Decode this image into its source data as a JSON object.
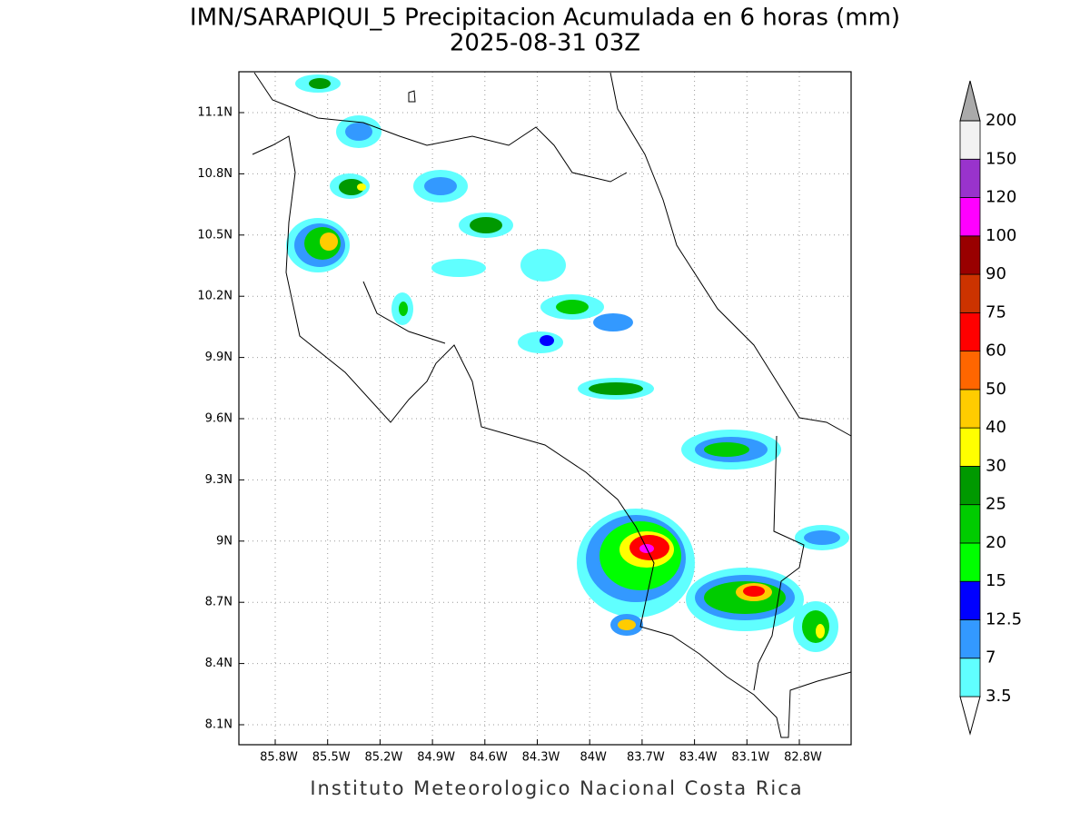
{
  "title": "IMN/SARAPIQUI_5 Precipitacion Acumulada en 6 horas (mm)",
  "subtitle": "2025-08-31 03Z",
  "map": {
    "lon_labels": [
      "85.8W",
      "85.5W",
      "85.2W",
      "84.9W",
      "84.6W",
      "84.3W",
      "84W",
      "83.7W",
      "83.4W",
      "83.1W",
      "82.8W"
    ],
    "lat_labels": [
      "11.1N",
      "10.8N",
      "10.5N",
      "10.2N",
      "9.9N",
      "9.6N",
      "9.3N",
      "9N",
      "8.7N",
      "8.4N",
      "8.1N"
    ]
  },
  "colorbar": {
    "levels": [
      "3.5",
      "7",
      "12.5",
      "15",
      "20",
      "25",
      "30",
      "40",
      "50",
      "60",
      "75",
      "90",
      "100",
      "120",
      "150",
      "200"
    ],
    "colors": [
      "#60ffff",
      "#3399ff",
      "#0000ff",
      "#00ff00",
      "#00cc00",
      "#009900",
      "#ffff00",
      "#ffcc00",
      "#ff6600",
      "#ff0000",
      "#cc3300",
      "#990000",
      "#ff00ff",
      "#9933cc",
      "#f2f2f2",
      "#aaaaaa"
    ]
  },
  "footer": "Instituto Meteorologico Nacional Costa Rica"
}
